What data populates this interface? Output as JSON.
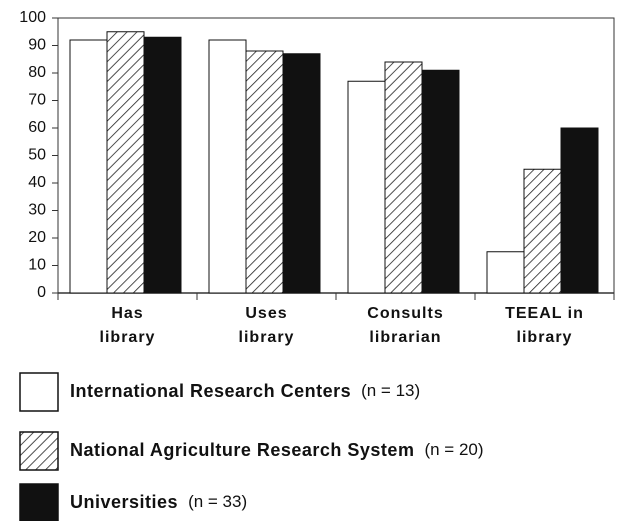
{
  "chart_data": {
    "type": "bar",
    "categories": [
      [
        "Has",
        "library"
      ],
      [
        "Uses",
        "library"
      ],
      [
        "Consults",
        "librarian"
      ],
      [
        "TEEAL in",
        "library"
      ]
    ],
    "series": [
      {
        "name": "International Research Centers",
        "note": "(n = 13)",
        "color": "#ffffff",
        "values": [
          92,
          92,
          77,
          15
        ]
      },
      {
        "name": "National Agriculture Research System",
        "note": "(n = 20)",
        "color": "#ffffff",
        "hatch": true,
        "values": [
          95,
          88,
          84,
          45
        ]
      },
      {
        "name": "Universities",
        "note": "(n = 33)",
        "color": "#111111",
        "values": [
          93,
          87,
          81,
          60
        ]
      }
    ],
    "ylim": [
      0,
      100
    ],
    "yticks": [
      0,
      10,
      20,
      30,
      40,
      50,
      60,
      70,
      80,
      90,
      100
    ],
    "grid": false
  }
}
